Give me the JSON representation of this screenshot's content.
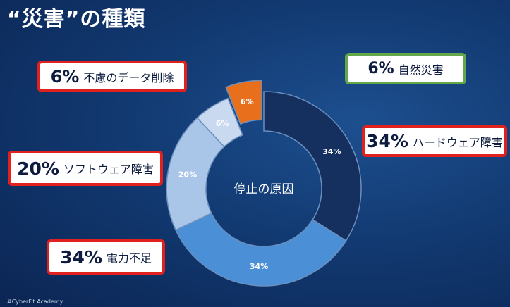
{
  "title": "“災害”の種類",
  "footer": "#CyberFit Academy",
  "chart_data": {
    "type": "pie",
    "center_label": "停止の原因",
    "slices": [
      {
        "label": "ハードウェア障害",
        "value": 34,
        "value_label": "34%",
        "color": "#15305f"
      },
      {
        "label": "電力不足",
        "value": 34,
        "value_label": "34%",
        "color": "#4b8fd6"
      },
      {
        "label": "ソフトウェア障害",
        "value": 20,
        "value_label": "20%",
        "color": "#a9c6e8"
      },
      {
        "label": "自然災害",
        "value": 6,
        "value_label": "6%",
        "color": "#c9daf0"
      },
      {
        "label": "不慮のデータ削除",
        "value": 6,
        "value_label": "6%",
        "color": "#e8701d"
      }
    ]
  },
  "labels": [
    {
      "pct": "6%",
      "text": "不慮のデータ削除"
    },
    {
      "pct": "6%",
      "text": "自然災害"
    },
    {
      "pct": "34%",
      "text": "ハードウェア障害"
    },
    {
      "pct": "20%",
      "text": "ソフトウェア障害"
    },
    {
      "pct": "34%",
      "text": "電力不足"
    }
  ]
}
